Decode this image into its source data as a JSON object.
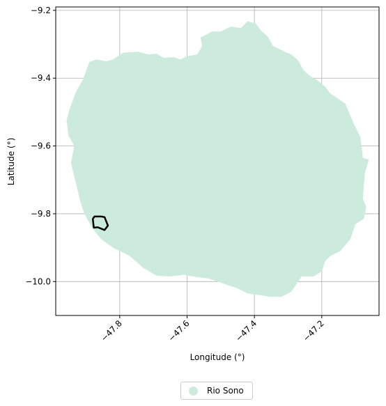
{
  "chart_data": {
    "type": "map",
    "xlabel": "Longitude (°)",
    "ylabel": "Latitude (°)",
    "xlim": [
      -47.99,
      -47.03
    ],
    "ylim": [
      -10.1,
      -9.19
    ],
    "xticks": [
      -47.8,
      -47.6,
      -47.4,
      -47.2
    ],
    "yticks": [
      -9.2,
      -9.4,
      -9.6,
      -9.8,
      -10.0
    ],
    "xtick_labels": [
      "−47.8",
      "−47.6",
      "−47.4",
      "−47.2"
    ],
    "ytick_labels": [
      "−9.2",
      "−9.4",
      "−9.6",
      "−9.8",
      "−10.0"
    ],
    "grid": true,
    "legend_position": "bottom-center",
    "legend": [
      {
        "label": "Rio Sono",
        "color": "#cdebdc"
      }
    ],
    "region_fill_color": "#cdebdc",
    "outline_color": "#000000",
    "region": {
      "name": "Rio Sono",
      "polygon": [
        [
          -47.89,
          -9.352
        ],
        [
          -47.87,
          -9.345
        ],
        [
          -47.84,
          -9.35
        ],
        [
          -47.82,
          -9.345
        ],
        [
          -47.79,
          -9.325
        ],
        [
          -47.745,
          -9.322
        ],
        [
          -47.715,
          -9.33
        ],
        [
          -47.69,
          -9.328
        ],
        [
          -47.67,
          -9.34
        ],
        [
          -47.64,
          -9.338
        ],
        [
          -47.62,
          -9.345
        ],
        [
          -47.6,
          -9.335
        ],
        [
          -47.57,
          -9.33
        ],
        [
          -47.555,
          -9.305
        ],
        [
          -47.56,
          -9.28
        ],
        [
          -47.525,
          -9.262
        ],
        [
          -47.5,
          -9.262
        ],
        [
          -47.47,
          -9.248
        ],
        [
          -47.44,
          -9.252
        ],
        [
          -47.42,
          -9.232
        ],
        [
          -47.395,
          -9.24
        ],
        [
          -47.38,
          -9.26
        ],
        [
          -47.36,
          -9.278
        ],
        [
          -47.345,
          -9.305
        ],
        [
          -47.31,
          -9.322
        ],
        [
          -47.29,
          -9.33
        ],
        [
          -47.27,
          -9.348
        ],
        [
          -47.255,
          -9.375
        ],
        [
          -47.24,
          -9.39
        ],
        [
          -47.215,
          -9.405
        ],
        [
          -47.19,
          -9.425
        ],
        [
          -47.175,
          -9.445
        ],
        [
          -47.145,
          -9.465
        ],
        [
          -47.13,
          -9.475
        ],
        [
          -47.105,
          -9.535
        ],
        [
          -47.085,
          -9.575
        ],
        [
          -47.078,
          -9.635
        ],
        [
          -47.06,
          -9.64
        ],
        [
          -47.072,
          -9.68
        ],
        [
          -47.078,
          -9.755
        ],
        [
          -47.068,
          -9.78
        ],
        [
          -47.075,
          -9.815
        ],
        [
          -47.1,
          -9.83
        ],
        [
          -47.115,
          -9.875
        ],
        [
          -47.145,
          -9.91
        ],
        [
          -47.175,
          -9.925
        ],
        [
          -47.19,
          -9.94
        ],
        [
          -47.2,
          -9.97
        ],
        [
          -47.225,
          -9.985
        ],
        [
          -47.26,
          -9.985
        ],
        [
          -47.29,
          -10.03
        ],
        [
          -47.32,
          -10.045
        ],
        [
          -47.355,
          -10.045
        ],
        [
          -47.385,
          -10.04
        ],
        [
          -47.42,
          -10.035
        ],
        [
          -47.45,
          -10.02
        ],
        [
          -47.48,
          -10.01
        ],
        [
          -47.51,
          -10.0
        ],
        [
          -47.54,
          -9.99
        ],
        [
          -47.57,
          -9.987
        ],
        [
          -47.61,
          -9.98
        ],
        [
          -47.65,
          -9.985
        ],
        [
          -47.69,
          -9.983
        ],
        [
          -47.73,
          -9.96
        ],
        [
          -47.77,
          -9.925
        ],
        [
          -47.82,
          -9.9
        ],
        [
          -47.855,
          -9.875
        ],
        [
          -47.88,
          -9.845
        ],
        [
          -47.905,
          -9.8
        ],
        [
          -47.918,
          -9.76
        ],
        [
          -47.93,
          -9.71
        ],
        [
          -47.945,
          -9.65
        ],
        [
          -47.935,
          -9.6
        ],
        [
          -47.952,
          -9.57
        ],
        [
          -47.958,
          -9.525
        ],
        [
          -47.95,
          -9.495
        ],
        [
          -47.93,
          -9.44
        ],
        [
          -47.91,
          -9.405
        ]
      ]
    },
    "outline": {
      "polygon": [
        [
          -47.88,
          -9.815
        ],
        [
          -47.875,
          -9.808
        ],
        [
          -47.855,
          -9.808
        ],
        [
          -47.845,
          -9.81
        ],
        [
          -47.835,
          -9.835
        ],
        [
          -47.845,
          -9.848
        ],
        [
          -47.865,
          -9.84
        ],
        [
          -47.877,
          -9.841
        ]
      ]
    }
  }
}
